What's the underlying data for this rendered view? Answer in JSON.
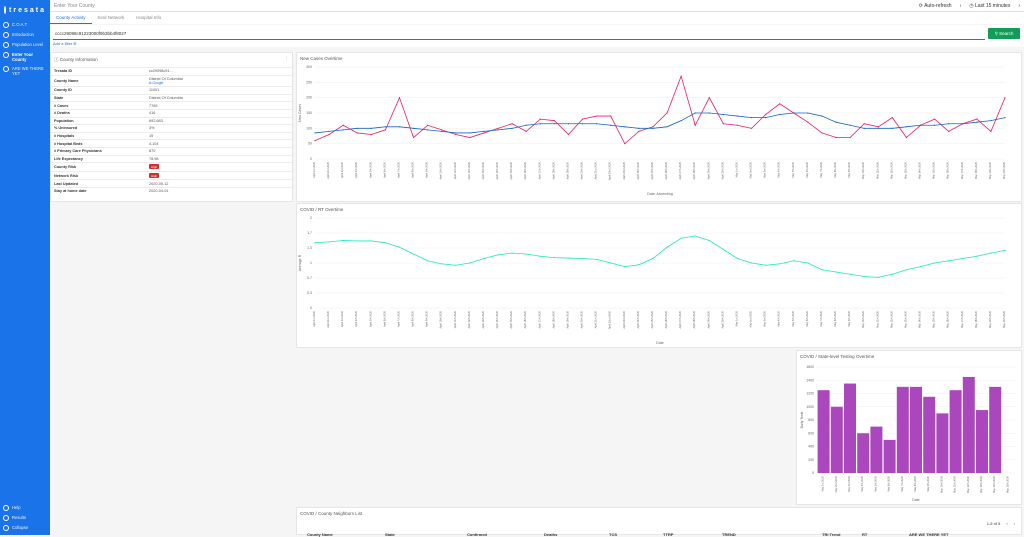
{
  "app": {
    "brand": "tresata",
    "page_title": "Enter Your County"
  },
  "sidebar": {
    "items": [
      {
        "label": "C.O.A.T",
        "icon": "home-icon"
      },
      {
        "label": "Introduction",
        "icon": "info-icon"
      },
      {
        "label": "Population Level",
        "icon": "people-icon"
      },
      {
        "label": "Enter Your County",
        "icon": "pin-icon"
      },
      {
        "label": "ARE WE THERE YET",
        "icon": "flag-icon"
      }
    ],
    "bottom": [
      {
        "label": "Help",
        "icon": "help-icon"
      },
      {
        "label": "Results",
        "icon": "results-icon"
      },
      {
        "label": "Collapse",
        "icon": "collapse-icon"
      }
    ]
  },
  "topbar": {
    "auto_refresh": "Auto-refresh",
    "time_range": "Last 15 minutes"
  },
  "tabs": [
    "County Activity",
    "Kind Network",
    "Hospital Info"
  ],
  "search": {
    "value": "cccc29098c91223000f9b3bb4f8027",
    "button": "Search",
    "add_filter": "Add a filter"
  },
  "info": {
    "title": "County Information",
    "rows": [
      {
        "k": "Tresata ID",
        "v": "cc29098c91..."
      },
      {
        "k": "County Name",
        "v": "District Of Columbia",
        "link": "Google"
      },
      {
        "k": "County ID",
        "v": "11001"
      },
      {
        "k": "State",
        "v": "District Of Columbia"
      },
      {
        "k": "# Cases",
        "v": "7765"
      },
      {
        "k": "# Deaths",
        "v": "416"
      },
      {
        "k": "Population",
        "v": "692,683"
      },
      {
        "k": "% Uninsured",
        "v": "3%"
      },
      {
        "k": "# Hospitals",
        "v": "15"
      },
      {
        "k": "# Hospital Beds",
        "v": "4,104"
      },
      {
        "k": "# Primary Care Physicians",
        "v": "870"
      },
      {
        "k": "Life Expectancy",
        "v": "78.98"
      },
      {
        "k": "County Risk",
        "badge": "High"
      },
      {
        "k": "Network Risk",
        "badge": "High"
      },
      {
        "k": "Last Updated",
        "v": "2020-05-12"
      },
      {
        "k": "Stay at home date",
        "v": "2020-04-01"
      }
    ]
  },
  "charts": {
    "new_cases": {
      "title": "New Cases Overtime",
      "xlabel": "Date: Ascending",
      "ylabel": "New Cases"
    },
    "rt": {
      "title": "COVID / RT Overtime",
      "xlabel": "Date",
      "ylabel": "Average R"
    },
    "testing": {
      "title": "COVID / State-level Testing Overtime",
      "xlabel": "Date",
      "ylabel": "Daily Tests"
    }
  },
  "chart_data": [
    {
      "type": "line",
      "title": "New Cases Overtime",
      "xlabel": "Date: Ascending",
      "ylabel": "New Cases",
      "ylim": [
        0,
        300
      ],
      "x": [
        "April 1st 2020",
        "April 2nd 2020",
        "April 3rd 2020",
        "April 4th 2020",
        "April 5th 2020",
        "April 6th 2020",
        "April 7th 2020",
        "April 8th 2020",
        "April 9th 2020",
        "April 10th 2020",
        "April 11th 2020",
        "April 12th 2020",
        "April 13th 2020",
        "April 14th 2020",
        "April 15th 2020",
        "April 16th 2020",
        "April 17th 2020",
        "April 18th 2020",
        "April 19th 2020",
        "April 20th 2020",
        "April 21st 2020",
        "April 22nd 2020",
        "April 23rd 2020",
        "April 24th 2020",
        "April 25th 2020",
        "April 26th 2020",
        "April 27th 2020",
        "April 28th 2020",
        "April 29th 2020",
        "April 30th 2020",
        "May 1st 2020",
        "May 2nd 2020",
        "May 3rd 2020",
        "May 4th 2020",
        "May 5th 2020",
        "May 6th 2020",
        "May 7th 2020",
        "May 8th 2020",
        "May 9th 2020",
        "May 10th 2020",
        "May 11th 2020",
        "May 12th 2020",
        "May 13th 2020",
        "May 14th 2020",
        "May 15th 2020",
        "May 16th 2020",
        "May 17th 2020",
        "May 18th 2020",
        "May 19th 2020",
        "May 20th 2020"
      ],
      "series": [
        {
          "name": "",
          "color": "#e91e63",
          "values": [
            60,
            80,
            110,
            85,
            80,
            95,
            200,
            70,
            110,
            95,
            80,
            70,
            85,
            100,
            115,
            90,
            130,
            125,
            80,
            130,
            140,
            140,
            50,
            90,
            105,
            150,
            270,
            110,
            200,
            115,
            110,
            100,
            145,
            180,
            150,
            120,
            85,
            70,
            70,
            115,
            105,
            135,
            70,
            110,
            130,
            90,
            115,
            130,
            90,
            200
          ]
        },
        {
          "name": "",
          "color": "#1565c0",
          "values": [
            85,
            90,
            95,
            100,
            100,
            105,
            105,
            100,
            95,
            90,
            85,
            85,
            90,
            95,
            100,
            110,
            115,
            115,
            115,
            115,
            115,
            110,
            105,
            100,
            100,
            105,
            125,
            150,
            150,
            145,
            140,
            135,
            135,
            145,
            150,
            150,
            140,
            120,
            110,
            100,
            100,
            100,
            105,
            110,
            110,
            115,
            115,
            120,
            125,
            135
          ]
        }
      ]
    },
    {
      "type": "line",
      "title": "COVID / RT Overtime",
      "xlabel": "Date",
      "ylabel": "Average R",
      "ylim": [
        0,
        2
      ],
      "x": [
        "April 1st 2020",
        "April 2nd 2020",
        "April 3rd 2020",
        "April 4th 2020",
        "April 5th 2020",
        "April 6th 2020",
        "April 7th 2020",
        "April 8th 2020",
        "April 9th 2020",
        "April 10th 2020",
        "April 11th 2020",
        "April 12th 2020",
        "April 13th 2020",
        "April 14th 2020",
        "April 15th 2020",
        "April 16th 2020",
        "April 17th 2020",
        "April 18th 2020",
        "April 19th 2020",
        "April 20th 2020",
        "April 21st 2020",
        "April 22nd 2020",
        "April 23rd 2020",
        "April 24th 2020",
        "April 25th 2020",
        "April 26th 2020",
        "April 27th 2020",
        "April 28th 2020",
        "April 29th 2020",
        "April 30th 2020",
        "May 1st 2020",
        "May 2nd 2020",
        "May 3rd 2020",
        "May 4th 2020",
        "May 5th 2020",
        "May 6th 2020",
        "May 7th 2020",
        "May 8th 2020",
        "May 9th 2020",
        "May 10th 2020",
        "May 11th 2020",
        "May 12th 2020",
        "May 13th 2020",
        "May 14th 2020",
        "May 15th 2020",
        "May 16th 2020",
        "May 17th 2020",
        "May 18th 2020",
        "May 19th 2020",
        "May 20th 2020"
      ],
      "series": [
        {
          "name": "",
          "color": "#1de9b6",
          "values": [
            1.45,
            1.47,
            1.5,
            1.49,
            1.49,
            1.45,
            1.35,
            1.2,
            1.05,
            0.98,
            0.95,
            1.0,
            1.1,
            1.18,
            1.22,
            1.2,
            1.15,
            1.12,
            1.11,
            1.1,
            1.08,
            1.0,
            0.92,
            0.96,
            1.1,
            1.35,
            1.55,
            1.6,
            1.5,
            1.3,
            1.1,
            1.0,
            0.95,
            0.98,
            1.05,
            1.0,
            0.85,
            0.8,
            0.75,
            0.7,
            0.68,
            0.75,
            0.85,
            0.92,
            1.0,
            1.05,
            1.1,
            1.15,
            1.22,
            1.28
          ]
        }
      ]
    },
    {
      "type": "bar",
      "title": "COVID / State-level Testing Overtime",
      "xlabel": "Date",
      "ylabel": "Daily Tests",
      "ylim": [
        0,
        1600
      ],
      "categories": [
        "May 1st 2020",
        "May 2nd 2020",
        "May 3rd 2020",
        "May 4th 2020",
        "May 5th 2020",
        "May 6th 2020",
        "May 7th 2020",
        "May 8th 2020",
        "May 9th 2020",
        "May 10th 2020",
        "May 11th 2020",
        "May 12th 2020",
        "May 13th 2020",
        "May 14th 2020",
        "May 15th 2020"
      ],
      "series": [
        {
          "name": "",
          "color": "#ab47bc",
          "values": [
            1250,
            1000,
            1350,
            600,
            700,
            500,
            1300,
            1300,
            1150,
            900,
            1250,
            1450,
            950,
            1300,
            0
          ]
        }
      ]
    }
  ],
  "neighbors": {
    "title": "COVID / County Neighbors List",
    "pager": "1-5 of 5",
    "columns": [
      "County Name",
      "State",
      "Confirmed",
      "Deaths",
      "TCS",
      "TTRP",
      "TREND",
      "TRI Trend",
      "RT",
      "ARE WE THERE YET"
    ]
  }
}
